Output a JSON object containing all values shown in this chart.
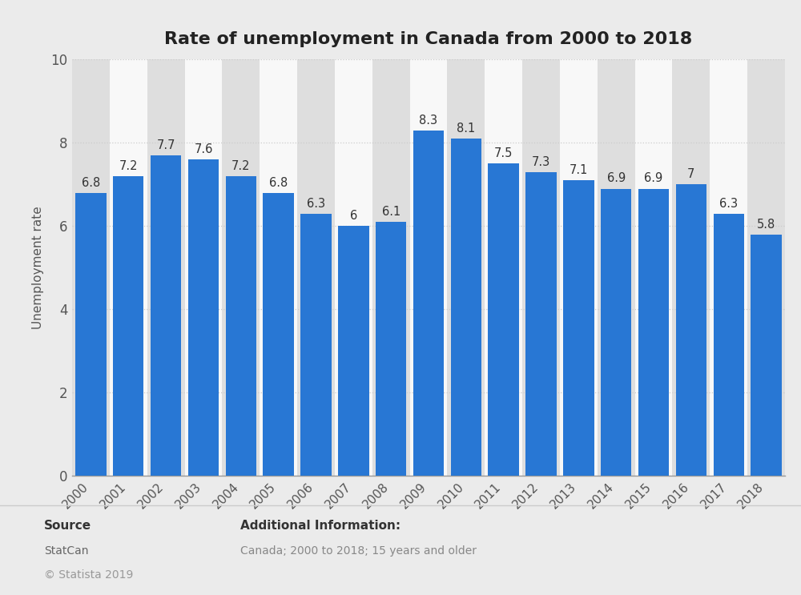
{
  "title": "Rate of unemployment in Canada from 2000 to 2018",
  "ylabel": "Unemployment rate",
  "years": [
    "2000",
    "2001",
    "2002",
    "2003",
    "2004",
    "2005",
    "2006",
    "2007",
    "2008",
    "2009",
    "2010",
    "2011",
    "2012",
    "2013",
    "2014",
    "2015",
    "2016",
    "2017",
    "2018"
  ],
  "values": [
    6.8,
    7.2,
    7.7,
    7.6,
    7.2,
    6.8,
    6.3,
    6.0,
    6.1,
    8.3,
    8.1,
    7.5,
    7.3,
    7.1,
    6.9,
    6.9,
    7.0,
    6.3,
    5.8
  ],
  "bar_color": "#2877D4",
  "ylim": [
    0,
    10
  ],
  "yticks": [
    0,
    2,
    4,
    6,
    8,
    10
  ],
  "bg_color": "#ebebeb",
  "plot_bg_color": "#ebebeb",
  "chart_area_bg": "#f8f8f8",
  "alt_col_color": "#dedede",
  "title_fontsize": 16,
  "label_fontsize": 11,
  "tick_fontsize": 11,
  "value_fontsize": 10.5,
  "source_text": "Source",
  "source_name": "StatCan",
  "copyright_text": "© Statista 2019",
  "add_info_title": "Additional Information:",
  "add_info_text": "Canada; 2000 to 2018; 15 years and older",
  "footer_bg_color": "#ffffff",
  "grid_color": "#cccccc",
  "bar_width": 0.82
}
